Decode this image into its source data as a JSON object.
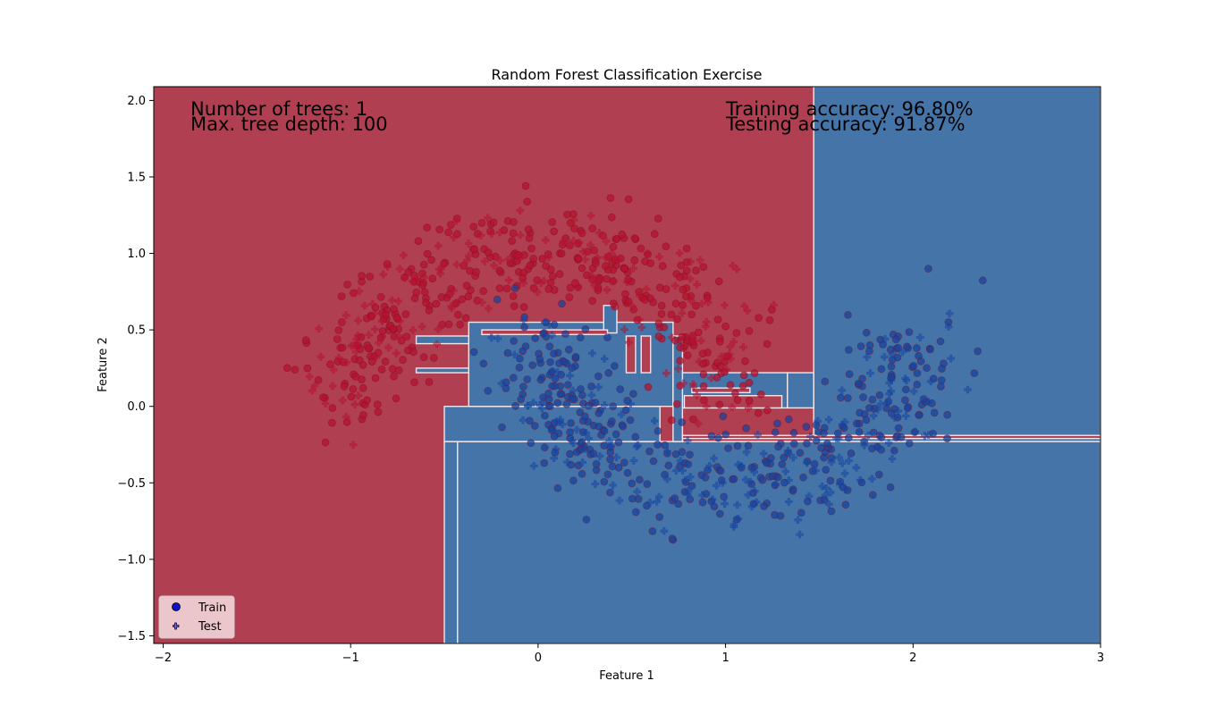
{
  "chart_data": {
    "type": "scatter",
    "title": "Random Forest Classification Exercise",
    "xlabel": "Feature 1",
    "ylabel": "Feature 2",
    "xlim": [
      -2.05,
      3.0
    ],
    "ylim": [
      -1.55,
      2.09
    ],
    "xticks": [
      -2,
      -1,
      0,
      1,
      2,
      3
    ],
    "yticks": [
      -1.5,
      -1.0,
      -0.5,
      0.0,
      0.5,
      1.0,
      1.5,
      2.0
    ],
    "xtick_labels": [
      "−2",
      "−1",
      "0",
      "1",
      "2",
      "3"
    ],
    "ytick_labels": [
      "−1.5",
      "−1.0",
      "−0.5",
      "0.0",
      "0.5",
      "1.0",
      "1.5",
      "2.0"
    ],
    "annotations": {
      "trees": "Number of trees: 1",
      "depth": "Max. tree depth: 100",
      "train_acc": "Training accuracy: 96.80%",
      "test_acc": "Testing accuracy: 91.87%"
    },
    "legend": {
      "location": "lower-left",
      "entries": [
        "Train",
        "Test"
      ]
    },
    "decision_regions": {
      "class0_color": "#b03f52",
      "class1_color": "#4575a8",
      "class1_rects": [
        [
          1.47,
          3.0,
          -0.23,
          2.09
        ],
        [
          -0.43,
          3.0,
          -1.55,
          -0.23
        ],
        [
          -0.5,
          -0.43,
          -1.55,
          -0.23
        ],
        [
          -0.5,
          0.65,
          -0.23,
          0.0
        ],
        [
          -0.37,
          0.72,
          0.0,
          0.55
        ],
        [
          -0.65,
          -0.37,
          0.41,
          0.46
        ],
        [
          -0.65,
          -0.37,
          0.22,
          0.25
        ],
        [
          0.35,
          0.42,
          0.48,
          0.66
        ],
        [
          0.77,
          1.33,
          -0.01,
          0.22
        ],
        [
          1.33,
          1.47,
          -0.01,
          0.22
        ],
        [
          0.72,
          0.77,
          -0.23,
          0.46
        ]
      ],
      "class0_rects": [
        [
          -0.3,
          0.37,
          0.47,
          0.5
        ],
        [
          0.47,
          0.52,
          0.22,
          0.46
        ],
        [
          0.55,
          0.6,
          0.22,
          0.46
        ],
        [
          0.78,
          1.3,
          -0.01,
          0.07
        ],
        [
          0.82,
          1.13,
          0.09,
          0.12
        ],
        [
          0.77,
          3.0,
          -0.21,
          -0.19
        ]
      ]
    },
    "series": [
      {
        "name": "Train",
        "class": 0,
        "marker": "circle",
        "color": "#b5122f",
        "center": [
          -0.2,
          0.72
        ],
        "spread": [
          0.55,
          0.32
        ],
        "count": 380,
        "seed": 11
      },
      {
        "name": "Train",
        "class": 1,
        "marker": "circle",
        "color": "#1544a0",
        "center": [
          1.1,
          -0.18
        ],
        "spread": [
          0.55,
          0.32
        ],
        "count": 380,
        "seed": 23
      },
      {
        "name": "Test",
        "class": 0,
        "marker": "plus",
        "color": "#b5122f",
        "center": [
          -0.2,
          0.72
        ],
        "spread": [
          0.55,
          0.32
        ],
        "count": 160,
        "seed": 37
      },
      {
        "name": "Test",
        "class": 1,
        "marker": "plus",
        "color": "#1544a0",
        "center": [
          1.1,
          -0.18
        ],
        "spread": [
          0.55,
          0.32
        ],
        "count": 160,
        "seed": 53
      }
    ]
  }
}
